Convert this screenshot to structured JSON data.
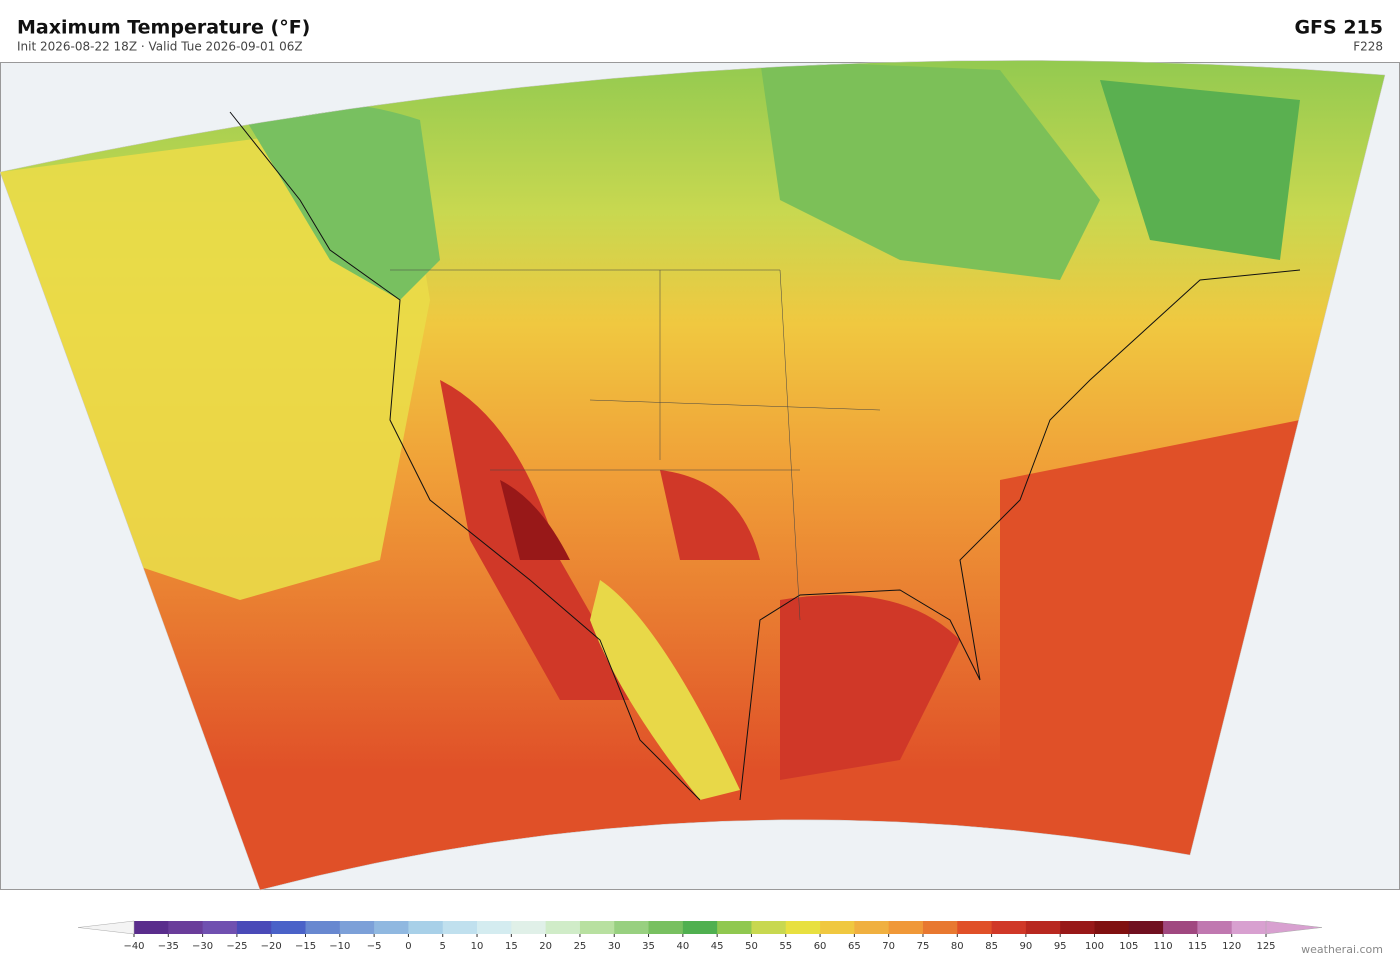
{
  "header": {
    "title": "Maximum Temperature  (°F)",
    "subtitle": "Init 2026-08-22 18Z  ·  Valid Tue 2026-09-01 06Z",
    "model": "GFS  215",
    "forecast": "F228"
  },
  "colorbar": {
    "ticks": [
      {
        "value": -40,
        "label": "−40"
      },
      {
        "value": -35,
        "label": "−35"
      },
      {
        "value": -30,
        "label": "−30"
      },
      {
        "value": -25,
        "label": "−25"
      },
      {
        "value": -20,
        "label": "−20"
      },
      {
        "value": -15,
        "label": "−15"
      },
      {
        "value": -10,
        "label": "−10"
      },
      {
        "value": -5,
        "label": "−5"
      },
      0,
      5,
      10,
      15,
      20,
      25,
      30,
      35,
      40,
      45,
      50,
      55,
      60,
      65,
      70,
      75,
      80,
      85,
      90,
      95,
      100,
      105,
      110,
      115,
      120,
      125
    ],
    "colors": [
      "#5a2d8c",
      "#6a3d9a",
      "#7050b0",
      "#4a4ab8",
      "#4a62c8",
      "#6888d0",
      "#7ca0d8",
      "#90b8e0",
      "#a8d0e8",
      "#c0e0ee",
      "#d4ecf0",
      "#e0f0e8",
      "#d0ecc8",
      "#b8e0a0",
      "#98d080",
      "#78c060",
      "#50b050",
      "#90c850",
      "#c8d850",
      "#e8e040",
      "#f0c840",
      "#f0b040",
      "#f09838",
      "#e87830",
      "#e05028",
      "#d03828",
      "#b82820",
      "#981818",
      "#801010",
      "#701020",
      "#a04880",
      "#c078b0",
      "#d8a0d0"
    ],
    "under_color": "#f4f4f4",
    "over_color": "#d8a0d0"
  },
  "credit": "weatherai.com"
}
